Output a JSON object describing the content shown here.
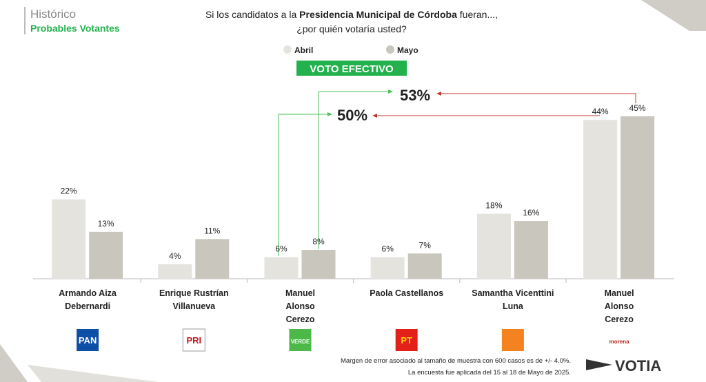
{
  "header": {
    "title": "Histórico",
    "subtitle": "Probables Votantes"
  },
  "chart_data": {
    "type": "bar",
    "title": {
      "before": "Si los candidatos a la ",
      "bold": "Presidencia Municipal de Córdoba",
      "after": " fueran...,",
      "line2": "¿por quién votaría usted?"
    },
    "badge": "VOTO EFECTIVO",
    "categories": [
      [
        "Armando Aiza",
        "Debernardi"
      ],
      [
        "Enrique Rustrían",
        "Villanueva"
      ],
      [
        "Manuel",
        "Alonso",
        "Cerezo"
      ],
      [
        "Paola Castellanos"
      ],
      [
        "Samantha Vicenttini",
        "Luna"
      ],
      [
        "Manuel",
        "Alonso",
        "Cerezo"
      ]
    ],
    "series": [
      {
        "name": "Abril",
        "color": "#e4e3de",
        "values": [
          22,
          4,
          6,
          6,
          18,
          44
        ],
        "value_labels": [
          "22%",
          "4%",
          "6%",
          "6%",
          "18%",
          "44%"
        ]
      },
      {
        "name": "Mayo",
        "color": "#c9c6be",
        "values": [
          13,
          11,
          8,
          7,
          16,
          45
        ],
        "value_labels": [
          "13%",
          "11%",
          "8%",
          "7%",
          "16%",
          "45%"
        ]
      }
    ],
    "ylim": [
      0,
      45
    ],
    "annotations": [
      "53%",
      "50%"
    ],
    "logos": [
      "PAN",
      "PRI",
      "VERDE",
      "PT",
      "",
      "morena"
    ]
  },
  "footer": {
    "notes": [
      "Margen de error asociado al tamaño de muestra con 600 casos es de +/- 4.0%.",
      "La encuesta fue aplicada del 15 al 18 de Mayo de 2025."
    ],
    "brand": "VOTIA"
  }
}
